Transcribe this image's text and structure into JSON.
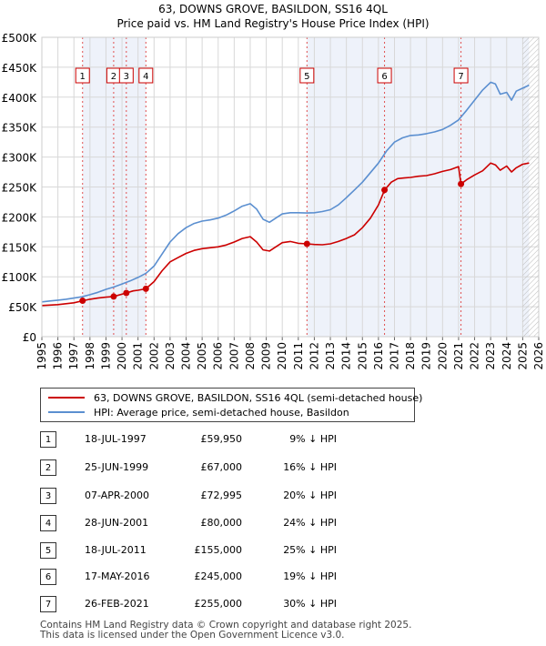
{
  "chart_data": {
    "type": "line",
    "title": "63, DOWNS GROVE, BASILDON, SS16 4QL",
    "subtitle": "Price paid vs. HM Land Registry's House Price Index (HPI)",
    "xlim": [
      1995,
      2026
    ],
    "ylim": [
      0,
      500000
    ],
    "x_ticks": [
      "1995",
      "1996",
      "1997",
      "1998",
      "1999",
      "2000",
      "2001",
      "2002",
      "2003",
      "2004",
      "2005",
      "2006",
      "2007",
      "2008",
      "2009",
      "2010",
      "2011",
      "2012",
      "2013",
      "2014",
      "2015",
      "2016",
      "2017",
      "2018",
      "2019",
      "2020",
      "2021",
      "2022",
      "2023",
      "2024",
      "2025",
      "2026"
    ],
    "y_ticks": [
      "£0",
      "£50K",
      "£100K",
      "£150K",
      "£200K",
      "£250K",
      "£300K",
      "£350K",
      "£400K",
      "£450K",
      "£500K"
    ],
    "y_tick_values": [
      0,
      50000,
      100000,
      150000,
      200000,
      250000,
      300000,
      350000,
      400000,
      450000,
      500000
    ],
    "series": [
      {
        "name": "63, DOWNS GROVE, BASILDON, SS16 4QL (semi-detached house)",
        "color": "#cc0000",
        "x": [
          1995.0,
          1996.0,
          1997.0,
          1997.54,
          1998.0,
          1998.5,
          1999.0,
          1999.48,
          1999.8,
          2000.27,
          2000.7,
          2001.0,
          2001.49,
          2002.0,
          2002.5,
          2003.0,
          2003.5,
          2004.0,
          2004.5,
          2005.0,
          2005.5,
          2006.0,
          2006.5,
          2007.0,
          2007.5,
          2008.0,
          2008.4,
          2008.8,
          2009.2,
          2009.6,
          2010.0,
          2010.5,
          2011.0,
          2011.54,
          2012.0,
          2012.5,
          2013.0,
          2013.5,
          2014.0,
          2014.5,
          2015.0,
          2015.5,
          2016.0,
          2016.38,
          2016.8,
          2017.2,
          2017.6,
          2018.0,
          2018.5,
          2019.0,
          2019.5,
          2020.0,
          2020.5,
          2021.0,
          2021.15,
          2021.5,
          2022.0,
          2022.5,
          2023.0,
          2023.3,
          2023.6,
          2024.0,
          2024.3,
          2024.6,
          2025.0,
          2025.4
        ],
        "values": [
          52000,
          53500,
          56500,
          59950,
          62500,
          64500,
          66000,
          67000,
          69500,
          72995,
          76500,
          77500,
          80000,
          92000,
          110000,
          125000,
          132000,
          139000,
          144000,
          147000,
          148500,
          150000,
          153000,
          158000,
          164000,
          167000,
          158000,
          145000,
          143000,
          150000,
          157000,
          159000,
          156000,
          155000,
          154000,
          153500,
          155000,
          159000,
          164000,
          170000,
          182000,
          198000,
          220000,
          245000,
          258000,
          264000,
          265000,
          266000,
          268000,
          269000,
          272000,
          276000,
          279000,
          284000,
          255000,
          262000,
          270000,
          277000,
          290000,
          287000,
          278000,
          285000,
          275000,
          282000,
          288000,
          290000
        ]
      },
      {
        "name": "HPI: Average price, semi-detached house, Basildon",
        "color": "#5b8fd0",
        "x": [
          1995.0,
          1995.5,
          1996.0,
          1996.5,
          1997.0,
          1997.5,
          1998.0,
          1998.5,
          1999.0,
          1999.5,
          2000.0,
          2000.5,
          2001.0,
          2001.5,
          2002.0,
          2002.5,
          2003.0,
          2003.5,
          2004.0,
          2004.5,
          2005.0,
          2005.5,
          2006.0,
          2006.5,
          2007.0,
          2007.5,
          2008.0,
          2008.4,
          2008.8,
          2009.2,
          2009.6,
          2010.0,
          2010.5,
          2011.0,
          2011.5,
          2012.0,
          2012.5,
          2013.0,
          2013.5,
          2014.0,
          2014.5,
          2015.0,
          2015.5,
          2016.0,
          2016.5,
          2017.0,
          2017.5,
          2018.0,
          2018.5,
          2019.0,
          2019.5,
          2020.0,
          2020.5,
          2021.0,
          2021.5,
          2022.0,
          2022.5,
          2023.0,
          2023.3,
          2023.6,
          2024.0,
          2024.3,
          2024.6,
          2025.0,
          2025.4
        ],
        "values": [
          58000,
          59500,
          61000,
          62500,
          64500,
          66500,
          70000,
          74000,
          79000,
          83000,
          88000,
          93000,
          99000,
          106000,
          118000,
          138000,
          158000,
          172000,
          182000,
          189000,
          193000,
          195000,
          198000,
          203000,
          210000,
          218000,
          222000,
          213000,
          196000,
          191000,
          198000,
          205000,
          207000,
          207000,
          206500,
          207000,
          209000,
          212000,
          220000,
          232000,
          245000,
          258000,
          274000,
          290000,
          310000,
          325000,
          332000,
          336000,
          337000,
          339000,
          342000,
          346000,
          353000,
          362000,
          378000,
          395000,
          412000,
          425000,
          422000,
          405000,
          408000,
          395000,
          410000,
          415000,
          420000
        ]
      }
    ],
    "sales": [
      {
        "label": "1",
        "x": 1997.54,
        "price": 59950
      },
      {
        "label": "2",
        "x": 1999.48,
        "price": 67000
      },
      {
        "label": "3",
        "x": 2000.27,
        "price": 72995
      },
      {
        "label": "4",
        "x": 2001.49,
        "price": 80000
      },
      {
        "label": "5",
        "x": 2011.54,
        "price": 155000
      },
      {
        "label": "6",
        "x": 2016.38,
        "price": 245000
      },
      {
        "label": "7",
        "x": 2021.15,
        "price": 255000
      }
    ],
    "highlight_periods": [
      [
        1997.54,
        1999.48
      ],
      [
        1999.48,
        2000.27
      ],
      [
        2000.27,
        2001.49
      ],
      [
        2011.54,
        2016.38
      ],
      [
        2016.38,
        2021.15
      ],
      [
        2021.15,
        2025.4
      ]
    ],
    "forecast_hatch_from": 2025.0
  },
  "legend": {
    "property": "63, DOWNS GROVE, BASILDON, SS16 4QL (semi-detached house)",
    "hpi": "HPI: Average price, semi-detached house, Basildon"
  },
  "table": [
    {
      "num": "1",
      "date": "18-JUL-1997",
      "price": "£59,950",
      "pct": "9% ↓ HPI"
    },
    {
      "num": "2",
      "date": "25-JUN-1999",
      "price": "£67,000",
      "pct": "16% ↓ HPI"
    },
    {
      "num": "3",
      "date": "07-APR-2000",
      "price": "£72,995",
      "pct": "20% ↓ HPI"
    },
    {
      "num": "4",
      "date": "28-JUN-2001",
      "price": "£80,000",
      "pct": "24% ↓ HPI"
    },
    {
      "num": "5",
      "date": "18-JUL-2011",
      "price": "£155,000",
      "pct": "25% ↓ HPI"
    },
    {
      "num": "6",
      "date": "17-MAY-2016",
      "price": "£245,000",
      "pct": "19% ↓ HPI"
    },
    {
      "num": "7",
      "date": "26-FEB-2021",
      "price": "£255,000",
      "pct": "30% ↓ HPI"
    }
  ],
  "footer": {
    "line1": "Contains HM Land Registry data © Crown copyright and database right 2025.",
    "line2": "This data is licensed under the Open Government Licence v3.0."
  }
}
